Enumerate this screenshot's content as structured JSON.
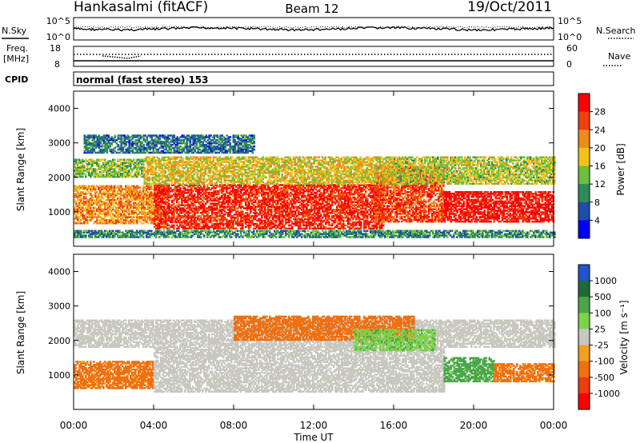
{
  "header": {
    "station": "Hankasalmi (fitACF)",
    "beam": "Beam 12",
    "date": "19/Oct/2011"
  },
  "noise_panel": {
    "left_label": "N.Sky",
    "right_label": "N.Search",
    "left_ticks": [
      "10^5",
      "10^0"
    ],
    "right_ticks": [
      "10^5",
      "10^0"
    ]
  },
  "freq_panel": {
    "left_label_top": "Freq.",
    "left_label_bottom": "[MHz]",
    "left_ticks": [
      "18",
      "8"
    ],
    "right_label": "Nave",
    "right_ticks": [
      "60",
      "0"
    ]
  },
  "cpid": {
    "label": "CPID",
    "value": "normal (fast stereo) 153"
  },
  "power_panel": {
    "ylabel": "Slant Range [km]",
    "yticks": [
      "1000",
      "2000",
      "3000",
      "4000"
    ],
    "colorbar_label": "Power [dB]",
    "colorbar_ticks": [
      "4",
      "8",
      "12",
      "16",
      "20",
      "24",
      "28"
    ],
    "colorbar_colors": [
      "#0000ff",
      "#1e4fa8",
      "#2e8b57",
      "#6cbf3a",
      "#f2c21a",
      "#f08a1c",
      "#f04010",
      "#ff0000"
    ]
  },
  "velocity_panel": {
    "ylabel": "Slant Range [km]",
    "yticks": [
      "1000",
      "2000",
      "3000",
      "4000"
    ],
    "colorbar_label": "Velocity  [m s⁻¹]",
    "colorbar_ticks": [
      "1000",
      "500",
      "100",
      "25",
      "-25",
      "-100",
      "-500",
      "-1000"
    ],
    "colorbar_colors": [
      "#2255cc",
      "#1f6b33",
      "#4aa64a",
      "#7cd34a",
      "#c8c8c0",
      "#f0a020",
      "#f07010",
      "#f03c10",
      "#ff0000"
    ]
  },
  "xaxis": {
    "ticks": [
      "00:00",
      "04:00",
      "08:00",
      "12:00",
      "16:00",
      "20:00",
      "00:00"
    ],
    "label": "Time UT"
  },
  "chart_data": [
    {
      "type": "heatmap",
      "name": "Power",
      "xlabel": "Time UT",
      "ylabel": "Slant Range [km]",
      "ylim": [
        0,
        4500
      ],
      "colorbar": {
        "label": "Power [dB]",
        "range": [
          0,
          32
        ]
      },
      "xlim": [
        "00:00",
        "24:00"
      ],
      "blobs": [
        {
          "t0": 0.0,
          "t1": 4.5,
          "r0": 650,
          "r1": 1750,
          "value": 22
        },
        {
          "t0": 4.0,
          "t1": 15.5,
          "r0": 500,
          "r1": 1800,
          "value": 28
        },
        {
          "t0": 15.0,
          "t1": 18.5,
          "r0": 700,
          "r1": 2300,
          "value": 26
        },
        {
          "t0": 18.5,
          "t1": 24.0,
          "r0": 700,
          "r1": 1600,
          "value": 30
        },
        {
          "t0": 0.0,
          "t1": 3.5,
          "r0": 2000,
          "r1": 2500,
          "value": 14
        },
        {
          "t0": 3.5,
          "t1": 16.0,
          "r0": 1800,
          "r1": 2600,
          "value": 18
        },
        {
          "t0": 16.0,
          "t1": 24.0,
          "r0": 1800,
          "r1": 2600,
          "value": 16
        },
        {
          "t0": 0.5,
          "t1": 9.0,
          "r0": 2700,
          "r1": 3200,
          "value": 8
        },
        {
          "t0": 0.0,
          "t1": 24.0,
          "r0": 250,
          "r1": 450,
          "value": 10
        }
      ]
    },
    {
      "type": "heatmap",
      "name": "Velocity",
      "xlabel": "Time UT",
      "ylabel": "Slant Range [km]",
      "ylim": [
        0,
        4500
      ],
      "colorbar": {
        "label": "Velocity [m s^-1]",
        "range": [
          -1000,
          1000
        ]
      },
      "xlim": [
        "00:00",
        "24:00"
      ],
      "blobs": [
        {
          "t0": 0.0,
          "t1": 4.0,
          "r0": 600,
          "r1": 1400,
          "value": -150
        },
        {
          "t0": 4.0,
          "t1": 18.5,
          "r0": 500,
          "r1": 1800,
          "value": 0
        },
        {
          "t0": 18.5,
          "t1": 21.0,
          "r0": 800,
          "r1": 1500,
          "value": 150
        },
        {
          "t0": 21.0,
          "t1": 24.0,
          "r0": 800,
          "r1": 1300,
          "value": -150
        },
        {
          "t0": 0.0,
          "t1": 24.0,
          "r0": 1800,
          "r1": 2600,
          "value": 0
        },
        {
          "t0": 8.0,
          "t1": 17.0,
          "r0": 2000,
          "r1": 2700,
          "value": -200
        },
        {
          "t0": 14.0,
          "t1": 18.0,
          "r0": 1700,
          "r1": 2300,
          "value": 80
        }
      ]
    }
  ]
}
